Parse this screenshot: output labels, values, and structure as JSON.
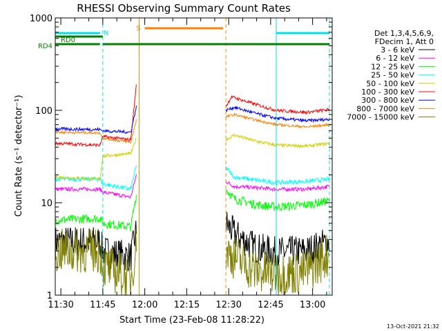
{
  "chart_data": {
    "type": "line",
    "title": "RHESSI Observing Summary Count Rates",
    "xlabel": "Start Time (23-Feb-08 11:28:22)",
    "ylabel": "Count Rate (s⁻¹ detector⁻¹)",
    "y_scale": "log",
    "ylim": [
      1,
      1000
    ],
    "xlim": [
      "11:28",
      "13:07"
    ],
    "x_ticks": [
      "11:30",
      "11:45",
      "12:00",
      "12:15",
      "12:30",
      "12:45",
      "13:00"
    ],
    "y_ticks": [
      "1",
      "10",
      "100",
      "1000"
    ],
    "legend": {
      "position": "right",
      "header": [
        "Det 1,3,4,5,6,9,",
        "FDecim 1, Att 0"
      ]
    },
    "footer_date": "13-Oct-2021 21:32",
    "flag_labels": {
      "rd0": "RD0",
      "rd4": "RD4",
      "n": "N",
      "s": "S"
    },
    "flags": {
      "rd0": [
        [
          "11:28",
          "11:45"
        ]
      ],
      "rd4": [
        [
          "11:28",
          "11:44"
        ],
        [
          "11:45",
          "12:28"
        ],
        [
          "12:28",
          "12:32"
        ],
        [
          "12:32",
          "13:06"
        ]
      ],
      "n": [
        [
          "11:28",
          "11:44"
        ],
        [
          "12:47",
          "13:06"
        ]
      ],
      "s": [
        [
          "12:00",
          "12:28"
        ]
      ]
    },
    "vlines": [
      {
        "time": "11:28",
        "color": "#00e0e0",
        "dash": false
      },
      {
        "time": "11:45",
        "color": "#00e0e0",
        "dash": true
      },
      {
        "time": "11:58",
        "color": "#ff8000",
        "dash": false
      },
      {
        "time": "12:29",
        "color": "#ff8000",
        "dash": true
      },
      {
        "time": "12:47",
        "color": "#00e0e0",
        "dash": false
      },
      {
        "time": "13:06",
        "color": "#00e0e0",
        "dash": true
      }
    ],
    "series": [
      {
        "name": "3 - 6 keV",
        "color": "#000000",
        "noise": 0.5,
        "segments": [
          [
            [
              "11:28",
              3.8
            ],
            [
              "11:44",
              3.8
            ],
            [
              "11:45",
              3.0
            ],
            [
              "11:55",
              2.6
            ],
            [
              "11:57",
              5.0
            ]
          ],
          [
            [
              "12:29",
              6.0
            ],
            [
              "12:32",
              4.6
            ],
            [
              "12:40",
              3.2
            ],
            [
              "12:47",
              2.9
            ],
            [
              "12:58",
              3.0
            ],
            [
              "13:06",
              3.8
            ]
          ]
        ]
      },
      {
        "name": "6 - 12 keV",
        "color": "#ff00ff",
        "noise": 0.06,
        "segments": [
          [
            [
              "11:28",
              14.0
            ],
            [
              "11:44",
              14.0
            ],
            [
              "11:45",
              13.0
            ],
            [
              "11:55",
              11.5
            ],
            [
              "11:57",
              20.0
            ]
          ],
          [
            [
              "12:29",
              17.0
            ],
            [
              "12:32",
              15.0
            ],
            [
              "12:40",
              14.5
            ],
            [
              "12:47",
              14.0
            ],
            [
              "12:58",
              14.0
            ],
            [
              "13:06",
              15.0
            ]
          ]
        ]
      },
      {
        "name": "12 - 25 keV",
        "color": "#00ff00",
        "noise": 0.14,
        "segments": [
          [
            [
              "11:28",
              6.5
            ],
            [
              "11:44",
              6.8
            ],
            [
              "11:45",
              6.0
            ],
            [
              "11:55",
              5.5
            ],
            [
              "11:57",
              12.0
            ]
          ],
          [
            [
              "12:29",
              14.0
            ],
            [
              "12:32",
              11.0
            ],
            [
              "12:40",
              9.5
            ],
            [
              "12:47",
              9.0
            ],
            [
              "12:58",
              9.5
            ],
            [
              "13:06",
              10.5
            ]
          ]
        ]
      },
      {
        "name": "25 - 50 keV",
        "color": "#00ffff",
        "noise": 0.07,
        "segments": [
          [
            [
              "11:28",
              18.0
            ],
            [
              "11:44",
              18.0
            ],
            [
              "11:45",
              16.0
            ],
            [
              "11:55",
              14.0
            ],
            [
              "11:57",
              25.0
            ]
          ],
          [
            [
              "12:29",
              24.0
            ],
            [
              "12:32",
              19.0
            ],
            [
              "12:40",
              17.5
            ],
            [
              "12:47",
              16.5
            ],
            [
              "12:58",
              17.0
            ],
            [
              "13:06",
              18.0
            ]
          ]
        ]
      },
      {
        "name": "50 - 100 keV",
        "color": "#d0d000",
        "noise": 0.05,
        "segments": [
          [
            [
              "11:28",
              19.0
            ],
            [
              "11:44",
              18.0
            ],
            [
              "11:45",
              32.0
            ],
            [
              "11:55",
              34.0
            ],
            [
              "11:57",
              50.0
            ]
          ],
          [
            [
              "12:29",
              48.0
            ],
            [
              "12:32",
              54.0
            ],
            [
              "12:40",
              46.0
            ],
            [
              "12:47",
              42.0
            ],
            [
              "12:58",
              41.0
            ],
            [
              "13:06",
              44.0
            ]
          ]
        ]
      },
      {
        "name": "100 - 300 keV",
        "color": "#ff0000",
        "noise": 0.05,
        "segments": [
          [
            [
              "11:28",
              44.0
            ],
            [
              "11:44",
              42.0
            ],
            [
              "11:45",
              52.0
            ],
            [
              "11:55",
              48.0
            ],
            [
              "11:57",
              190.0
            ]
          ],
          [
            [
              "12:29",
              110.0
            ],
            [
              "12:31",
              140.0
            ],
            [
              "12:40",
              115.0
            ],
            [
              "12:47",
              100.0
            ],
            [
              "12:58",
              95.0
            ],
            [
              "13:06",
              102.0
            ]
          ]
        ]
      },
      {
        "name": "300 - 800 keV",
        "color": "#0000ff",
        "noise": 0.05,
        "segments": [
          [
            [
              "11:28",
              63.0
            ],
            [
              "11:44",
              62.0
            ],
            [
              "11:45",
              60.0
            ],
            [
              "11:55",
              58.0
            ],
            [
              "11:57",
              110.0
            ]
          ],
          [
            [
              "12:29",
              100.0
            ],
            [
              "12:32",
              108.0
            ],
            [
              "12:40",
              92.0
            ],
            [
              "12:47",
              82.0
            ],
            [
              "12:58",
              77.0
            ],
            [
              "13:06",
              80.0
            ]
          ]
        ]
      },
      {
        "name": "800 - 7000 keV",
        "color": "#ff8000",
        "noise": 0.04,
        "segments": [
          [
            [
              "11:28",
              58.0
            ],
            [
              "11:44",
              57.0
            ],
            [
              "11:45",
              50.0
            ],
            [
              "11:55",
              45.0
            ],
            [
              "11:57",
              80.0
            ]
          ],
          [
            [
              "12:29",
              85.0
            ],
            [
              "12:32",
              90.0
            ],
            [
              "12:40",
              78.0
            ],
            [
              "12:47",
              70.0
            ],
            [
              "12:58",
              66.0
            ],
            [
              "13:06",
              70.0
            ]
          ]
        ]
      },
      {
        "name": "7000 - 15000 keV",
        "color": "#808000",
        "noise": 0.7,
        "segments": [
          [
            [
              "11:28",
              3.0
            ],
            [
              "11:44",
              3.0
            ],
            [
              "11:45",
              2.1
            ],
            [
              "11:55",
              1.5
            ],
            [
              "11:57",
              3.5
            ]
          ],
          [
            [
              "12:29",
              3.0
            ],
            [
              "12:32",
              2.6
            ],
            [
              "12:40",
              1.8
            ],
            [
              "12:47",
              1.7
            ],
            [
              "12:58",
              1.8
            ],
            [
              "13:06",
              2.8
            ]
          ]
        ]
      }
    ]
  }
}
